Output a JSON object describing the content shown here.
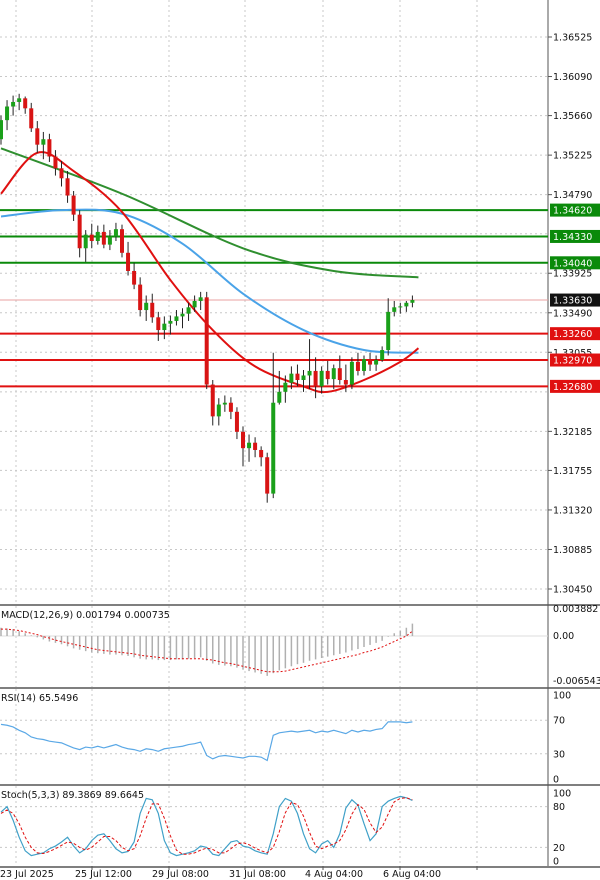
{
  "chart_data": {
    "type": "candlestick",
    "price_axis": {
      "ticks": [
        "1.36525",
        "1.36090",
        "1.35660",
        "1.35225",
        "1.34790",
        "1.34620",
        "1.34330",
        "1.34040",
        "1.33925",
        "1.33630",
        "1.33490",
        "1.33260",
        "1.33055",
        "1.32970",
        "1.32680",
        "1.32185",
        "1.31755",
        "1.31320",
        "1.30885",
        "1.30450"
      ]
    },
    "time_axis": {
      "ticks": [
        "23 Jul 2025",
        "25 Jul 12:00",
        "29 Jul 08:00",
        "31 Jul 08:00",
        "4 Aug 04:00",
        "6 Aug 04:00"
      ]
    },
    "levels": [
      {
        "value": 1.3462,
        "label": "1.34620",
        "color": "#0a8a0a"
      },
      {
        "value": 1.3433,
        "label": "1.34330",
        "color": "#0a8a0a"
      },
      {
        "value": 1.3404,
        "label": "1.34040",
        "color": "#0a8a0a"
      },
      {
        "value": 1.3326,
        "label": "1.33260",
        "color": "#e01010"
      },
      {
        "value": 1.3297,
        "label": "1.32970",
        "color": "#e01010"
      },
      {
        "value": 1.3268,
        "label": "1.32680",
        "color": "#e01010"
      }
    ],
    "current_price": "1.33630",
    "candles": [
      [
        1.354,
        1.3566,
        1.3534,
        1.3561
      ],
      [
        1.3561,
        1.3583,
        1.355,
        1.3576
      ],
      [
        1.3576,
        1.3588,
        1.3566,
        1.3581
      ],
      [
        1.3581,
        1.359,
        1.3572,
        1.3585
      ],
      [
        1.3585,
        1.3587,
        1.3568,
        1.3574
      ],
      [
        1.3574,
        1.358,
        1.3548,
        1.3552
      ],
      [
        1.3552,
        1.356,
        1.3525,
        1.3534
      ],
      [
        1.3534,
        1.3548,
        1.3518,
        1.354
      ],
      [
        1.354,
        1.3546,
        1.3515,
        1.3521
      ],
      [
        1.3521,
        1.3528,
        1.35,
        1.3508
      ],
      [
        1.3508,
        1.3516,
        1.3488,
        1.3497
      ],
      [
        1.3497,
        1.3505,
        1.347,
        1.3478
      ],
      [
        1.3478,
        1.3483,
        1.345,
        1.3457
      ],
      [
        1.3457,
        1.3462,
        1.341,
        1.342
      ],
      [
        1.342,
        1.344,
        1.3405,
        1.3435
      ],
      [
        1.3435,
        1.3447,
        1.342,
        1.3428
      ],
      [
        1.3428,
        1.3445,
        1.3424,
        1.3438
      ],
      [
        1.3438,
        1.3446,
        1.342,
        1.3424
      ],
      [
        1.3424,
        1.344,
        1.3418,
        1.3433
      ],
      [
        1.3433,
        1.3448,
        1.3428,
        1.3441
      ],
      [
        1.3441,
        1.3446,
        1.341,
        1.3415
      ],
      [
        1.3415,
        1.3427,
        1.339,
        1.3395
      ],
      [
        1.3395,
        1.3404,
        1.3375,
        1.338
      ],
      [
        1.338,
        1.3388,
        1.3345,
        1.3352
      ],
      [
        1.3352,
        1.3368,
        1.334,
        1.336
      ],
      [
        1.336,
        1.337,
        1.3338,
        1.3344
      ],
      [
        1.3344,
        1.335,
        1.3318,
        1.333
      ],
      [
        1.333,
        1.3345,
        1.332,
        1.3337
      ],
      [
        1.3337,
        1.3346,
        1.3325,
        1.334
      ],
      [
        1.334,
        1.3352,
        1.3335,
        1.3345
      ],
      [
        1.3345,
        1.3354,
        1.3332,
        1.3348
      ],
      [
        1.3348,
        1.336,
        1.334,
        1.3355
      ],
      [
        1.3355,
        1.3368,
        1.335,
        1.3362
      ],
      [
        1.3362,
        1.3372,
        1.3352,
        1.3366
      ],
      [
        1.3366,
        1.3372,
        1.3265,
        1.327
      ],
      [
        1.327,
        1.3275,
        1.3225,
        1.3235
      ],
      [
        1.3235,
        1.3255,
        1.3225,
        1.3248
      ],
      [
        1.3248,
        1.3258,
        1.324,
        1.325
      ],
      [
        1.325,
        1.3256,
        1.3232,
        1.324
      ],
      [
        1.324,
        1.3245,
        1.321,
        1.3218
      ],
      [
        1.3218,
        1.3224,
        1.318,
        1.32
      ],
      [
        1.32,
        1.3215,
        1.3185,
        1.3206
      ],
      [
        1.3206,
        1.3212,
        1.319,
        1.3198
      ],
      [
        1.3198,
        1.3202,
        1.318,
        1.319
      ],
      [
        1.319,
        1.3195,
        1.314,
        1.315
      ],
      [
        1.315,
        1.3305,
        1.3145,
        1.325
      ],
      [
        1.325,
        1.3285,
        1.3248,
        1.3262
      ],
      [
        1.3262,
        1.328,
        1.325,
        1.3272
      ],
      [
        1.3272,
        1.329,
        1.3265,
        1.3282
      ],
      [
        1.3282,
        1.3292,
        1.3268,
        1.3275
      ],
      [
        1.3275,
        1.3286,
        1.3262,
        1.328
      ],
      [
        1.328,
        1.332,
        1.3265,
        1.3285
      ],
      [
        1.3285,
        1.33,
        1.3255,
        1.3268
      ],
      [
        1.3268,
        1.329,
        1.326,
        1.3285
      ],
      [
        1.3285,
        1.3296,
        1.327,
        1.3276
      ],
      [
        1.3276,
        1.3292,
        1.3265,
        1.3288
      ],
      [
        1.3288,
        1.3302,
        1.327,
        1.3275
      ],
      [
        1.3275,
        1.3292,
        1.3262,
        1.327
      ],
      [
        1.327,
        1.33,
        1.3265,
        1.3295
      ],
      [
        1.3295,
        1.3305,
        1.328,
        1.3285
      ],
      [
        1.3285,
        1.3302,
        1.328,
        1.3298
      ],
      [
        1.3298,
        1.3305,
        1.3285,
        1.3292
      ],
      [
        1.3292,
        1.3302,
        1.3285,
        1.3297
      ],
      [
        1.3297,
        1.3312,
        1.3295,
        1.3308
      ],
      [
        1.3308,
        1.3365,
        1.3302,
        1.335
      ],
      [
        1.335,
        1.3362,
        1.3345,
        1.3355
      ],
      [
        1.3355,
        1.336,
        1.3348,
        1.3356
      ],
      [
        1.3356,
        1.3362,
        1.335,
        1.336
      ],
      [
        1.336,
        1.3368,
        1.3355,
        1.3363
      ]
    ],
    "ma_slow": {
      "color": "#2f8f2f",
      "points": [
        [
          0,
          1.353
        ],
        [
          20,
          1.348
        ],
        [
          40,
          1.342
        ],
        [
          55,
          1.3395
        ],
        [
          69,
          1.3388
        ]
      ]
    },
    "ma_mid": {
      "color": "#4aa3e8",
      "points": [
        [
          0,
          1.3455
        ],
        [
          10,
          1.3462
        ],
        [
          20,
          1.3458
        ],
        [
          30,
          1.3425
        ],
        [
          40,
          1.337
        ],
        [
          50,
          1.333
        ],
        [
          60,
          1.3308
        ],
        [
          69,
          1.3305
        ]
      ]
    },
    "ma_fast": {
      "color": "#e01010",
      "points": [
        [
          0,
          1.348
        ],
        [
          6,
          1.3525
        ],
        [
          12,
          1.3505
        ],
        [
          20,
          1.346
        ],
        [
          28,
          1.3385
        ],
        [
          35,
          1.333
        ],
        [
          42,
          1.329
        ],
        [
          50,
          1.3268
        ],
        [
          54,
          1.3262
        ],
        [
          60,
          1.3275
        ],
        [
          66,
          1.3295
        ],
        [
          69,
          1.331
        ]
      ]
    },
    "macd": {
      "title": "MACD(12,26,9) 0.001794 0.000735",
      "axis": [
        "0.003882",
        "0.00",
        "-0.006543"
      ],
      "hist": [
        0.0012,
        0.0011,
        0.001,
        0.0007,
        0.0004,
        0.0001,
        -0.0002,
        -0.0005,
        -0.0008,
        -0.001,
        -0.0012,
        -0.0015,
        -0.0018,
        -0.002,
        -0.0022,
        -0.0024,
        -0.0025,
        -0.0026,
        -0.0027,
        -0.0027,
        -0.0028,
        -0.0029,
        -0.0031,
        -0.0033,
        -0.0034,
        -0.0034,
        -0.0035,
        -0.0035,
        -0.0035,
        -0.0034,
        -0.0034,
        -0.0033,
        -0.0032,
        -0.0031,
        -0.0036,
        -0.004,
        -0.0042,
        -0.0043,
        -0.0044,
        -0.0046,
        -0.0049,
        -0.0051,
        -0.0053,
        -0.0055,
        -0.0058,
        -0.0054,
        -0.005,
        -0.0047,
        -0.0044,
        -0.0041,
        -0.0039,
        -0.0036,
        -0.0034,
        -0.0032,
        -0.003,
        -0.0028,
        -0.0026,
        -0.0024,
        -0.0021,
        -0.0019,
        -0.0016,
        -0.0013,
        -0.001,
        -0.0007,
        -0.0001,
        0.0004,
        0.0008,
        0.0012,
        0.0018
      ],
      "signal": [
        0.001,
        0.001,
        0.0009,
        0.0008,
        0.0006,
        0.0004,
        0.0002,
        -0.0001,
        -0.0003,
        -0.0006,
        -0.0008,
        -0.001,
        -0.0012,
        -0.0014,
        -0.0016,
        -0.0018,
        -0.002,
        -0.0021,
        -0.0022,
        -0.0023,
        -0.0024,
        -0.0025,
        -0.0026,
        -0.0028,
        -0.0029,
        -0.003,
        -0.0031,
        -0.0032,
        -0.0033,
        -0.0033,
        -0.0033,
        -0.0033,
        -0.0033,
        -0.0033,
        -0.0034,
        -0.0035,
        -0.0037,
        -0.0039,
        -0.004,
        -0.0042,
        -0.0044,
        -0.0046,
        -0.0048,
        -0.005,
        -0.0052,
        -0.0052,
        -0.0052,
        -0.0051,
        -0.0049,
        -0.0047,
        -0.0045,
        -0.0043,
        -0.0041,
        -0.0039,
        -0.0037,
        -0.0035,
        -0.0033,
        -0.0031,
        -0.0029,
        -0.0027,
        -0.0024,
        -0.0022,
        -0.0019,
        -0.0016,
        -0.0012,
        -0.0008,
        -0.0004,
        0.0,
        0.0007
      ]
    },
    "rsi": {
      "title": "RSI(14) 65.5496",
      "axis": [
        "100",
        "70",
        "30",
        "0"
      ],
      "values": [
        65,
        64,
        62,
        58,
        55,
        50,
        48,
        47,
        45,
        44,
        43,
        40,
        37,
        35,
        38,
        37,
        39,
        37,
        39,
        41,
        38,
        36,
        35,
        33,
        36,
        35,
        33,
        36,
        37,
        38,
        39,
        41,
        42,
        44,
        28,
        24,
        27,
        28,
        27,
        26,
        25,
        27,
        27,
        26,
        22,
        52,
        55,
        56,
        57,
        56,
        57,
        58,
        55,
        57,
        56,
        58,
        56,
        54,
        58,
        56,
        58,
        57,
        59,
        60,
        68,
        68,
        68,
        67,
        68
      ]
    },
    "stoch": {
      "title": "Stoch(5,3,3) 89.3869 89.6645",
      "axis": [
        "100",
        "80",
        "20",
        "0"
      ],
      "k": [
        72,
        80,
        60,
        35,
        15,
        8,
        10,
        12,
        18,
        22,
        28,
        35,
        22,
        12,
        18,
        30,
        38,
        40,
        30,
        18,
        12,
        14,
        28,
        70,
        92,
        90,
        70,
        30,
        12,
        8,
        10,
        12,
        15,
        22,
        20,
        10,
        8,
        18,
        28,
        30,
        22,
        20,
        15,
        12,
        10,
        40,
        80,
        92,
        88,
        70,
        40,
        18,
        12,
        25,
        30,
        20,
        40,
        78,
        90,
        82,
        55,
        30,
        40,
        80,
        88,
        92,
        95,
        93,
        89
      ],
      "d": [
        70,
        75,
        70,
        55,
        35,
        20,
        12,
        11,
        14,
        18,
        23,
        28,
        26,
        20,
        16,
        20,
        28,
        36,
        36,
        30,
        20,
        15,
        18,
        37,
        63,
        84,
        84,
        63,
        37,
        16,
        10,
        10,
        12,
        16,
        19,
        17,
        12,
        12,
        18,
        25,
        27,
        24,
        19,
        15,
        12,
        20,
        43,
        71,
        86,
        83,
        66,
        42,
        22,
        18,
        22,
        25,
        30,
        46,
        69,
        83,
        76,
        56,
        42,
        50,
        69,
        87,
        92,
        93,
        90
      ]
    }
  }
}
